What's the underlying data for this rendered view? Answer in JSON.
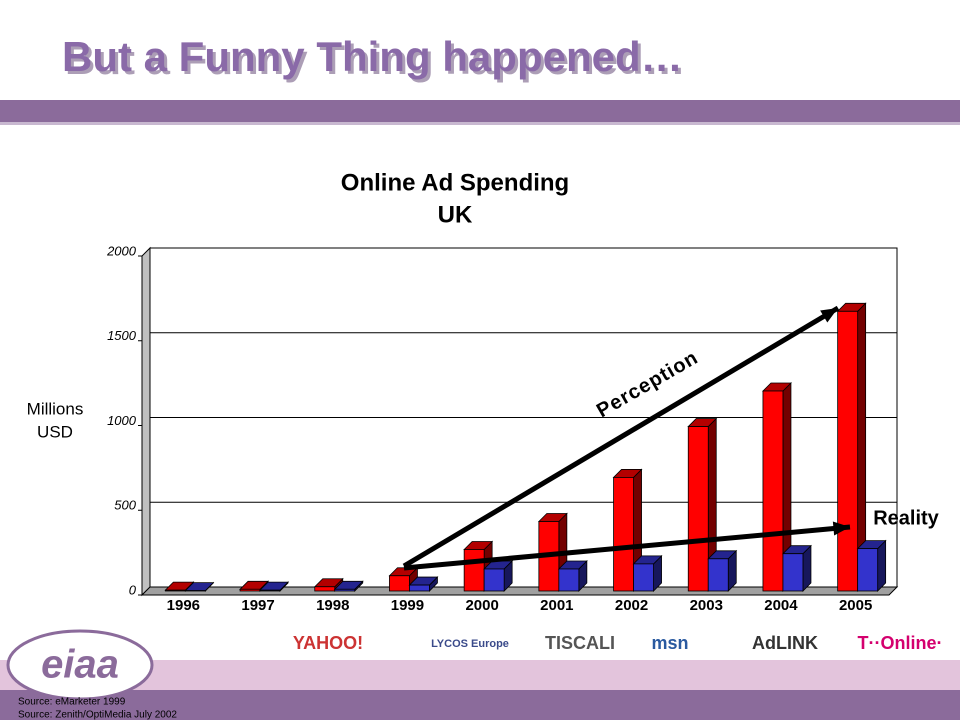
{
  "slide": {
    "title": "But a Funny Thing happened…",
    "sources": [
      "Source: eMarketer 1999",
      "Source: Zenith/OptiMedia July 2002"
    ],
    "logo": "eiaa",
    "partners": [
      "YAHOO!",
      "LYCOS Europe",
      "TISCALI",
      "msn",
      "AdLINK",
      "T··Online·"
    ]
  },
  "chart_data": {
    "type": "bar3d",
    "title": [
      "Online Ad Spending",
      "UK"
    ],
    "y_label": [
      "Millions",
      "USD"
    ],
    "categories": [
      "1996",
      "1997",
      "1998",
      "1999",
      "2000",
      "2001",
      "2002",
      "2003",
      "2004",
      "2005"
    ],
    "series": [
      {
        "color": "#ff0000",
        "values": [
          5,
          10,
          25,
          90,
          245,
          410,
          670,
          970,
          1180,
          1650
        ]
      },
      {
        "color": "#3333cc",
        "values": [
          2,
          5,
          10,
          35,
          130,
          130,
          160,
          190,
          220,
          250
        ]
      }
    ],
    "ylim": [
      0,
      2000
    ],
    "yticks": [
      0,
      500,
      1000,
      1500,
      2000
    ],
    "grid": true,
    "annotations": [
      "Perception",
      "Reality"
    ]
  }
}
